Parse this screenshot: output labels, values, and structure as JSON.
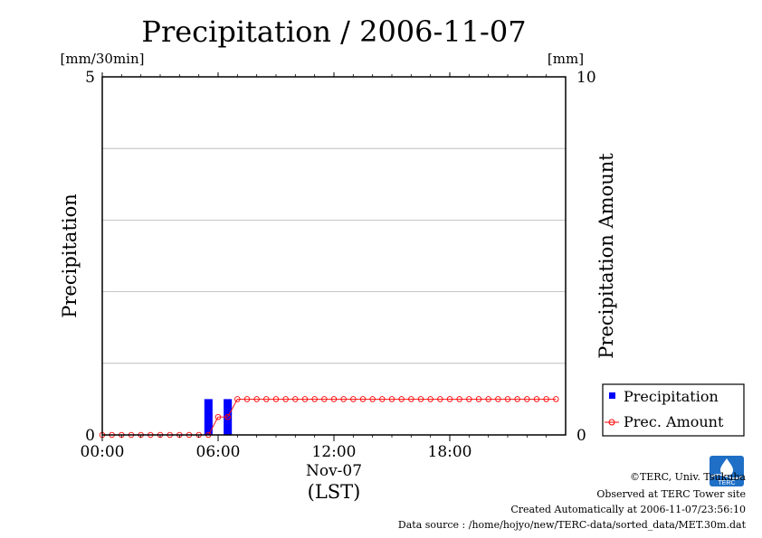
{
  "chart_data": {
    "type": "bar",
    "title": "Precipitation / 2006-11-07",
    "left_unit": "[mm/30min]",
    "right_unit": "[mm]",
    "ylabel": "Precipitation",
    "y2label": "Precipitation Amount",
    "ylim": [
      0,
      5
    ],
    "y2lim": [
      0,
      10
    ],
    "y_ticks": [
      "0",
      "5"
    ],
    "y2_ticks": [
      "0",
      "10"
    ],
    "xlim_hours": [
      0,
      24
    ],
    "x_ticks": [
      {
        "hour": 0,
        "label": "00:00"
      },
      {
        "hour": 6,
        "label": "06:00"
      },
      {
        "hour": 12,
        "label": "12:00"
      },
      {
        "hour": 18,
        "label": "18:00"
      }
    ],
    "x_date_label": "Nov-07",
    "x_zone_label": "(LST)",
    "grid": true,
    "legend_position": "right-bottom",
    "series": [
      {
        "name": "Precipitation",
        "kind": "bar",
        "color": "#0000ff",
        "points": [
          {
            "time": "05:30",
            "value": 0.5
          },
          {
            "time": "06:30",
            "value": 0.5
          }
        ]
      },
      {
        "name": "Prec. Amount",
        "kind": "line",
        "color": "#ff0000",
        "times": [
          "00:00",
          "00:30",
          "01:00",
          "01:30",
          "02:00",
          "02:30",
          "03:00",
          "03:30",
          "04:00",
          "04:30",
          "05:00",
          "05:30",
          "06:00",
          "06:30",
          "07:00",
          "07:30",
          "08:00",
          "08:30",
          "09:00",
          "09:30",
          "10:00",
          "10:30",
          "11:00",
          "11:30",
          "12:00",
          "12:30",
          "13:00",
          "13:30",
          "14:00",
          "14:30",
          "15:00",
          "15:30",
          "16:00",
          "16:30",
          "17:00",
          "17:30",
          "18:00",
          "18:30",
          "19:00",
          "19:30",
          "20:00",
          "20:30",
          "21:00",
          "21:30",
          "22:00",
          "22:30",
          "23:00",
          "23:30"
        ],
        "values": [
          0,
          0,
          0,
          0,
          0,
          0,
          0,
          0,
          0,
          0,
          0,
          0,
          0.5,
          0.5,
          1.0,
          1.0,
          1.0,
          1.0,
          1.0,
          1.0,
          1.0,
          1.0,
          1.0,
          1.0,
          1.0,
          1.0,
          1.0,
          1.0,
          1.0,
          1.0,
          1.0,
          1.0,
          1.0,
          1.0,
          1.0,
          1.0,
          1.0,
          1.0,
          1.0,
          1.0,
          1.0,
          1.0,
          1.0,
          1.0,
          1.0,
          1.0,
          1.0,
          1.0
        ]
      }
    ]
  },
  "footer": {
    "copyright": "©TERC, Univ. Tsukuba",
    "observed": "Observed at TERC Tower site",
    "created": "Created Automatically at 2006-11-07/23:56:10",
    "source": "Data source : /home/hojyo/new/TERC-data/sorted_data/MET.30m.dat",
    "logo_text": "TERC"
  }
}
